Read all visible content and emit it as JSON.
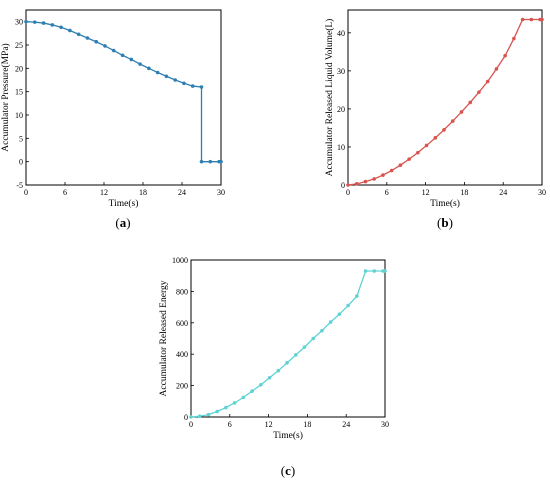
{
  "chart_data": [
    {
      "type": "line",
      "panel": "(a)",
      "panel_letter": "a",
      "xlabel": "Time(s)",
      "ylabel": "Accumulator Pressure(MPa)",
      "xlim": [
        0,
        30
      ],
      "ylim": [
        -5,
        32.5
      ],
      "xticks": [
        0,
        6,
        12,
        18,
        24,
        30
      ],
      "yticks": [
        -5,
        0,
        5,
        10,
        15,
        20,
        25,
        30
      ],
      "color": "#2f7fb3",
      "grid": false,
      "series": [
        {
          "x": [
            0,
            1.35,
            2.7,
            4.05,
            5.4,
            6.75,
            8.1,
            9.45,
            10.8,
            12.15,
            13.5,
            14.85,
            16.2,
            17.55,
            18.9,
            20.25,
            21.6,
            22.95,
            24.3,
            25.65,
            27,
            27,
            28.35,
            29.7,
            30
          ],
          "y": [
            30,
            29.9,
            29.7,
            29.3,
            28.8,
            28.1,
            27.3,
            26.5,
            25.7,
            24.8,
            23.8,
            22.8,
            21.9,
            20.9,
            20.0,
            19.1,
            18.3,
            17.5,
            16.8,
            16.2,
            16.0,
            0,
            0,
            0,
            0
          ]
        }
      ]
    },
    {
      "type": "line",
      "panel": "(b)",
      "panel_letter": "b",
      "xlabel": "Time(s)",
      "ylabel": "Accumulator Released Liquid Volume(L)",
      "xlim": [
        0,
        30
      ],
      "ylim": [
        0,
        46
      ],
      "xticks": [
        0,
        6,
        12,
        18,
        24,
        30
      ],
      "yticks": [
        0,
        10,
        20,
        30,
        40
      ],
      "color": "#d9534f",
      "grid": false,
      "series": [
        {
          "x": [
            0,
            1.35,
            2.7,
            4.05,
            5.4,
            6.75,
            8.1,
            9.45,
            10.8,
            12.15,
            13.5,
            14.85,
            16.2,
            17.55,
            18.9,
            20.25,
            21.6,
            22.95,
            24.3,
            25.65,
            27,
            28.35,
            29.7,
            30
          ],
          "y": [
            0,
            0.3,
            0.9,
            1.6,
            2.6,
            3.8,
            5.2,
            6.8,
            8.5,
            10.4,
            12.4,
            14.5,
            16.8,
            19.2,
            21.7,
            24.4,
            27.2,
            30.5,
            34.0,
            38.5,
            43.5,
            43.5,
            43.5,
            43.5
          ]
        }
      ]
    },
    {
      "type": "line",
      "panel": "(c)",
      "panel_letter": "c",
      "xlabel": "Time(s)",
      "ylabel": "Accumulator Released Energy",
      "xlim": [
        0,
        30
      ],
      "ylim": [
        0,
        1000
      ],
      "xticks": [
        0,
        6,
        12,
        18,
        24,
        30
      ],
      "yticks": [
        0,
        200,
        400,
        600,
        800,
        1000
      ],
      "color": "#5fd3d3",
      "grid": false,
      "series": [
        {
          "x": [
            0,
            1.35,
            2.7,
            4.05,
            5.4,
            6.75,
            8.1,
            9.45,
            10.8,
            12.15,
            13.5,
            14.85,
            16.2,
            17.55,
            18.9,
            20.25,
            21.6,
            22.95,
            24.3,
            25.65,
            27,
            28.35,
            29.7,
            30
          ],
          "y": [
            0,
            5,
            15,
            35,
            60,
            90,
            125,
            165,
            205,
            250,
            295,
            345,
            395,
            445,
            500,
            550,
            605,
            655,
            710,
            770,
            930,
            930,
            930,
            930
          ]
        }
      ]
    }
  ]
}
